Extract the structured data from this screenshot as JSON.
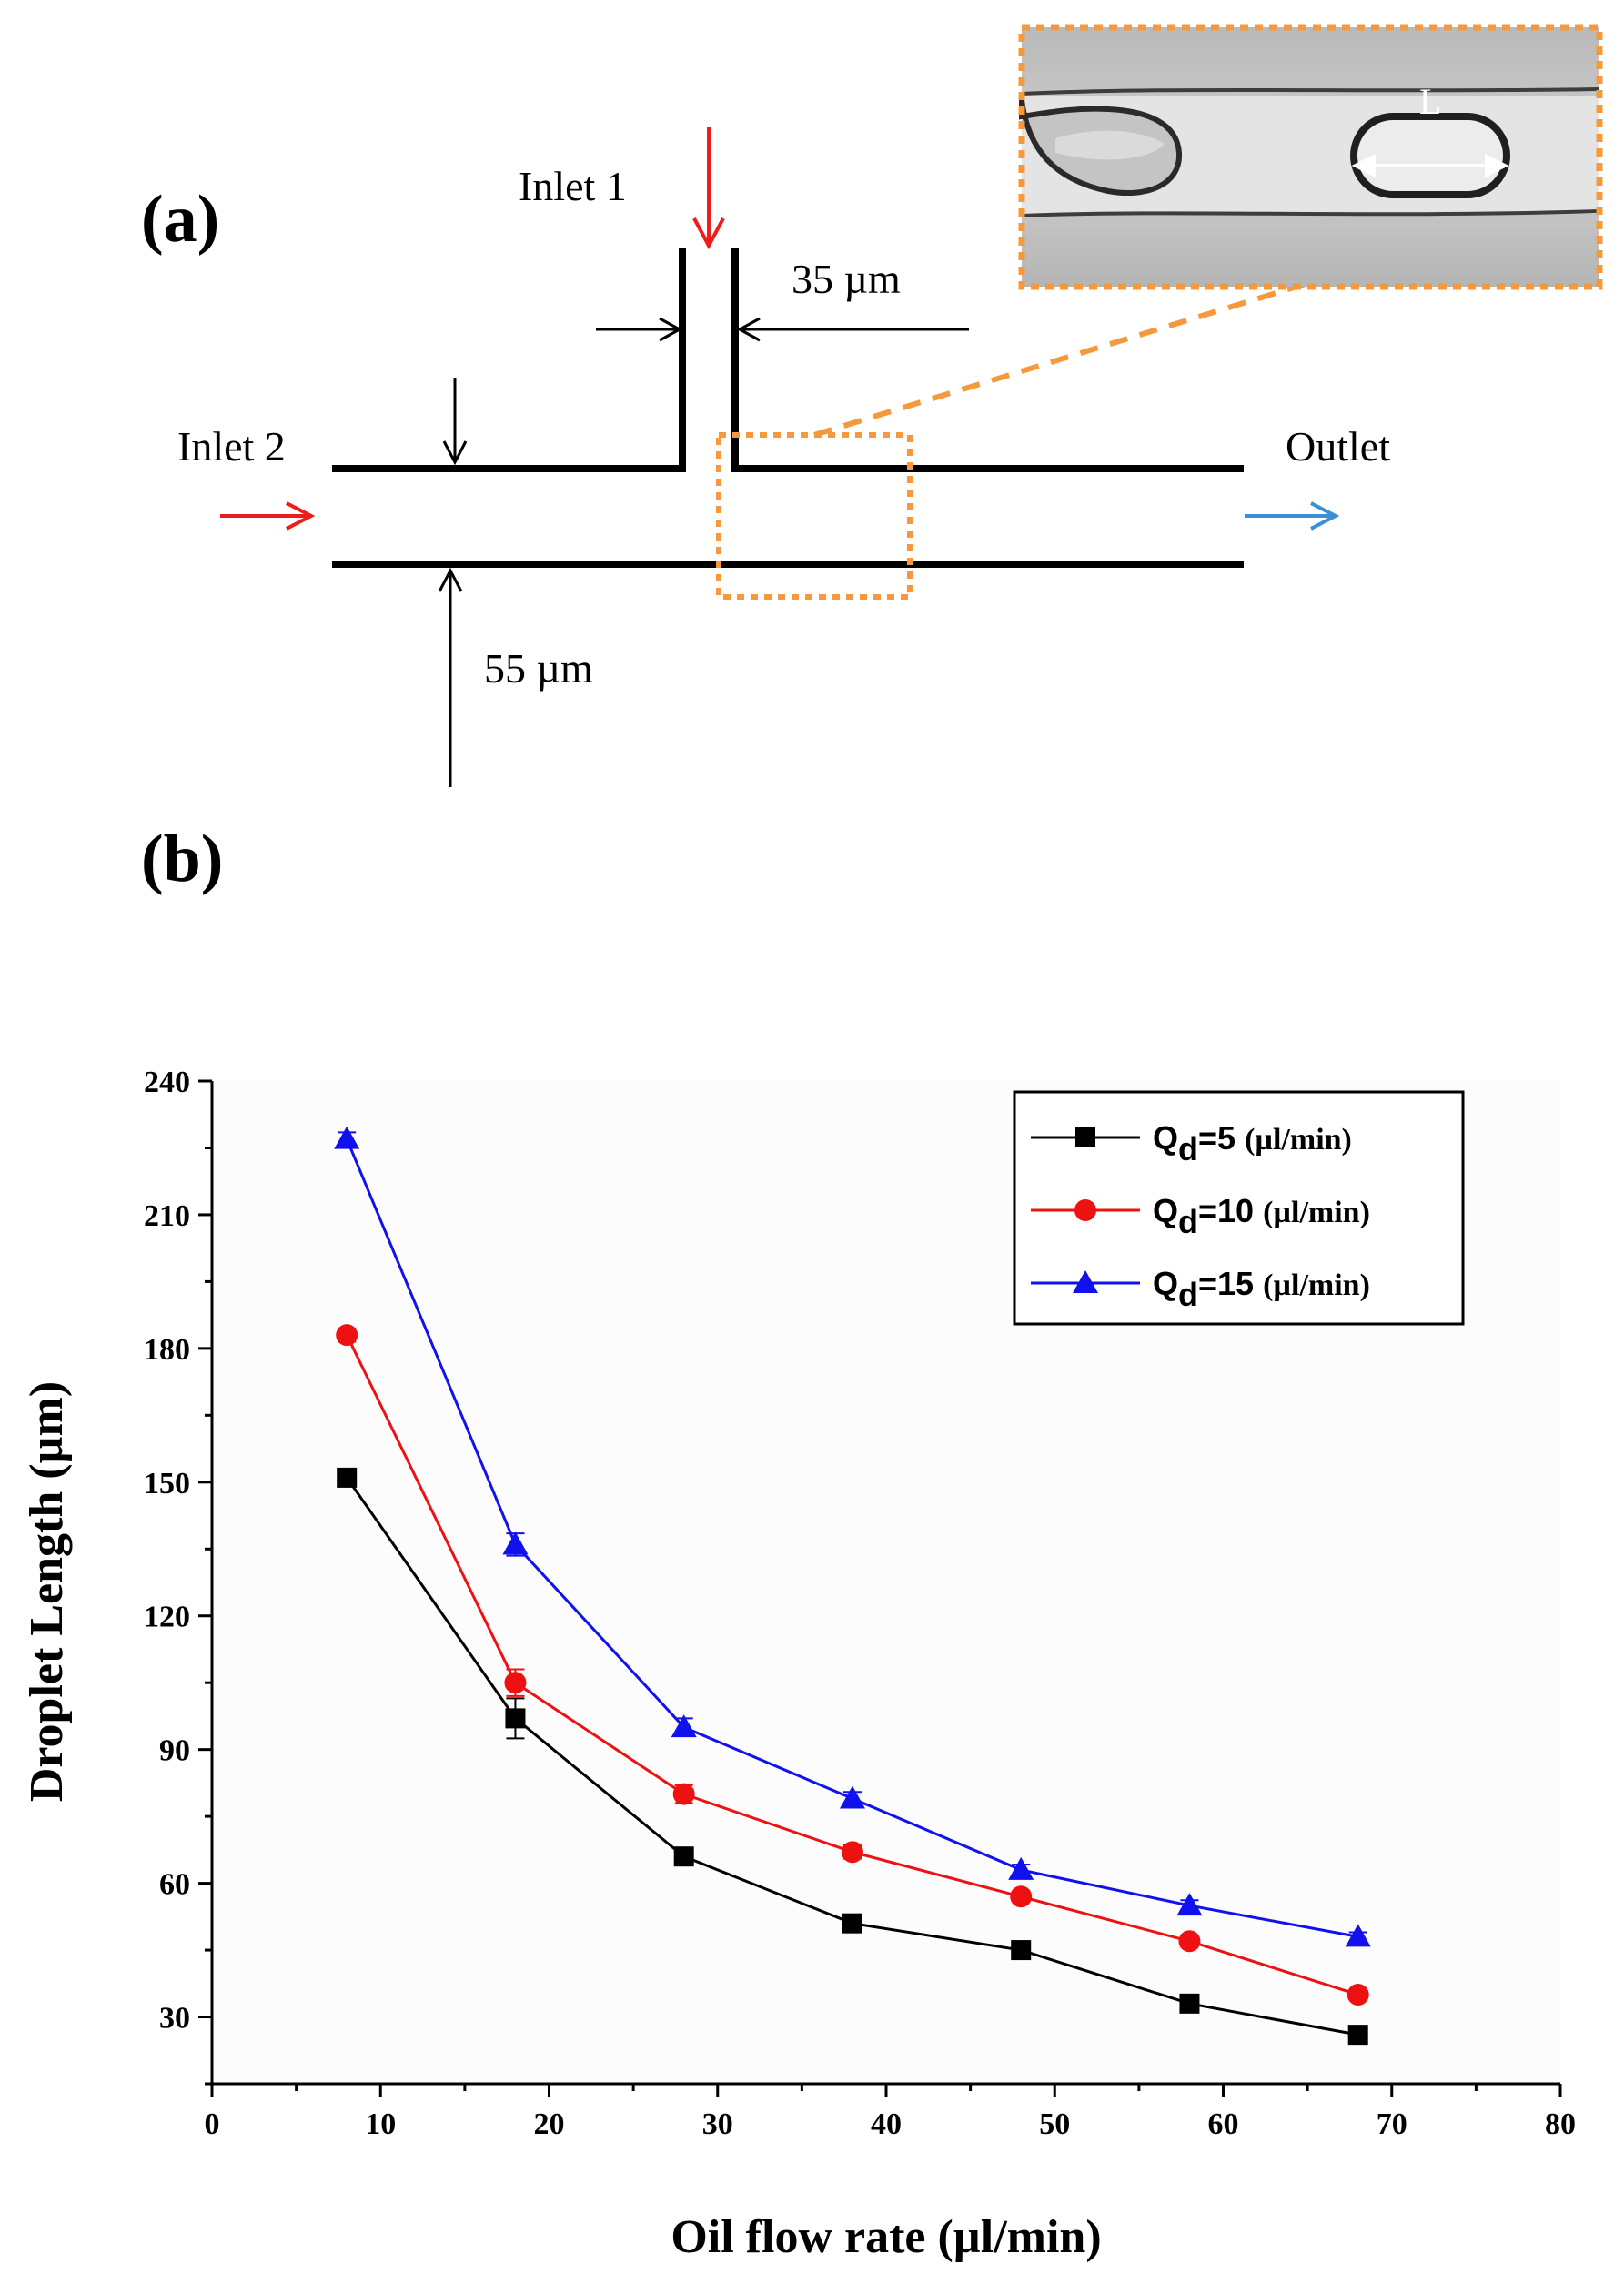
{
  "panel_a": {
    "label": "(a)",
    "inlet1": "Inlet 1",
    "inlet2": "Inlet 2",
    "outlet": "Outlet",
    "width_inlet": "35 µm",
    "width_channel": "55 µm",
    "inset_label": "L",
    "colors": {
      "inlet_arrow": "#ee1c1c",
      "outlet_arrow": "#3a8fd6",
      "inset_frame": "#f5993c"
    }
  },
  "panel_b": {
    "label": "(b)"
  },
  "chart_data": {
    "type": "line",
    "title": "",
    "xlabel": "Oil flow rate (µl/min)",
    "ylabel": "Droplet Length (µm)",
    "xlim": [
      0,
      80
    ],
    "ylim": [
      15,
      240
    ],
    "x_ticks": [
      0,
      10,
      20,
      30,
      40,
      50,
      60,
      70,
      80
    ],
    "y_ticks": [
      30,
      60,
      90,
      120,
      150,
      180,
      210,
      240
    ],
    "grid": false,
    "legend_position": "top-right",
    "x": [
      8,
      18,
      28,
      38,
      48,
      58,
      68
    ],
    "series": [
      {
        "name": "Q_d=5",
        "legend_main": "Q",
        "legend_sub": "d",
        "legend_value": "=5",
        "legend_unit": "(µl/min)",
        "color": "#000000",
        "marker": "square",
        "values": [
          151,
          97,
          66,
          51,
          45,
          33,
          26
        ],
        "errors": [
          1.5,
          4.5,
          1.2,
          1.2,
          1.2,
          1.2,
          1.0
        ]
      },
      {
        "name": "Q_d=10",
        "legend_main": "Q",
        "legend_sub": "d",
        "legend_value": "=10",
        "legend_unit": "(µl/min)",
        "color": "#ee1111",
        "marker": "circle",
        "values": [
          183,
          105,
          80,
          67,
          57,
          47,
          35
        ],
        "errors": [
          1.5,
          3.0,
          2.0,
          1.5,
          1.2,
          1.2,
          1.0
        ]
      },
      {
        "name": "Q_d=15",
        "legend_main": "Q",
        "legend_sub": "d",
        "legend_value": "=15",
        "legend_unit": "(µl/min)",
        "color": "#1111ee",
        "marker": "triangle",
        "values": [
          227,
          136,
          95,
          79,
          63,
          55,
          48
        ],
        "errors": [
          1.5,
          2.5,
          2.0,
          1.5,
          1.2,
          1.2,
          1.0
        ]
      }
    ]
  }
}
